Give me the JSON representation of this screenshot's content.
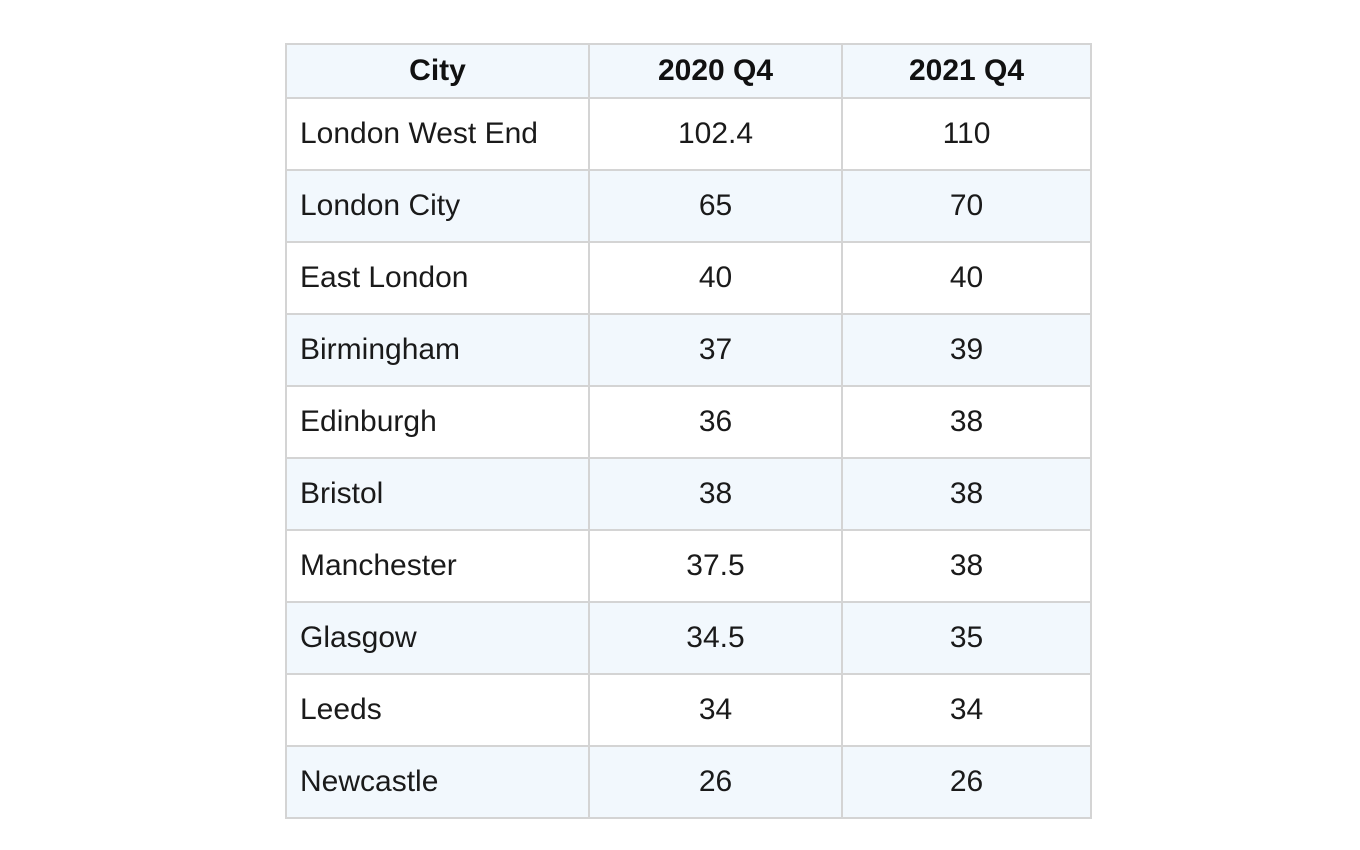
{
  "chart_data": {
    "type": "table",
    "columns": [
      "City",
      "2020 Q4",
      "2021 Q4"
    ],
    "rows": [
      {
        "city": "London West End",
        "q4_2020": "102.4",
        "q4_2021": "110"
      },
      {
        "city": "London City",
        "q4_2020": "65",
        "q4_2021": "70"
      },
      {
        "city": "East London",
        "q4_2020": "40",
        "q4_2021": "40"
      },
      {
        "city": "Birmingham",
        "q4_2020": "37",
        "q4_2021": "39"
      },
      {
        "city": "Edinburgh",
        "q4_2020": "36",
        "q4_2021": "38"
      },
      {
        "city": "Bristol",
        "q4_2020": "38",
        "q4_2021": "38"
      },
      {
        "city": "Manchester",
        "q4_2020": "37.5",
        "q4_2021": "38"
      },
      {
        "city": "Glasgow",
        "q4_2020": "34.5",
        "q4_2021": "35"
      },
      {
        "city": "Leeds",
        "q4_2020": "34",
        "q4_2021": "34"
      },
      {
        "city": "Newcastle",
        "q4_2020": "26",
        "q4_2021": "26"
      }
    ]
  },
  "colors": {
    "header_background": "#f2f8fd",
    "alt_row_background": "#f2f8fd",
    "border": "#d4d4d4"
  }
}
